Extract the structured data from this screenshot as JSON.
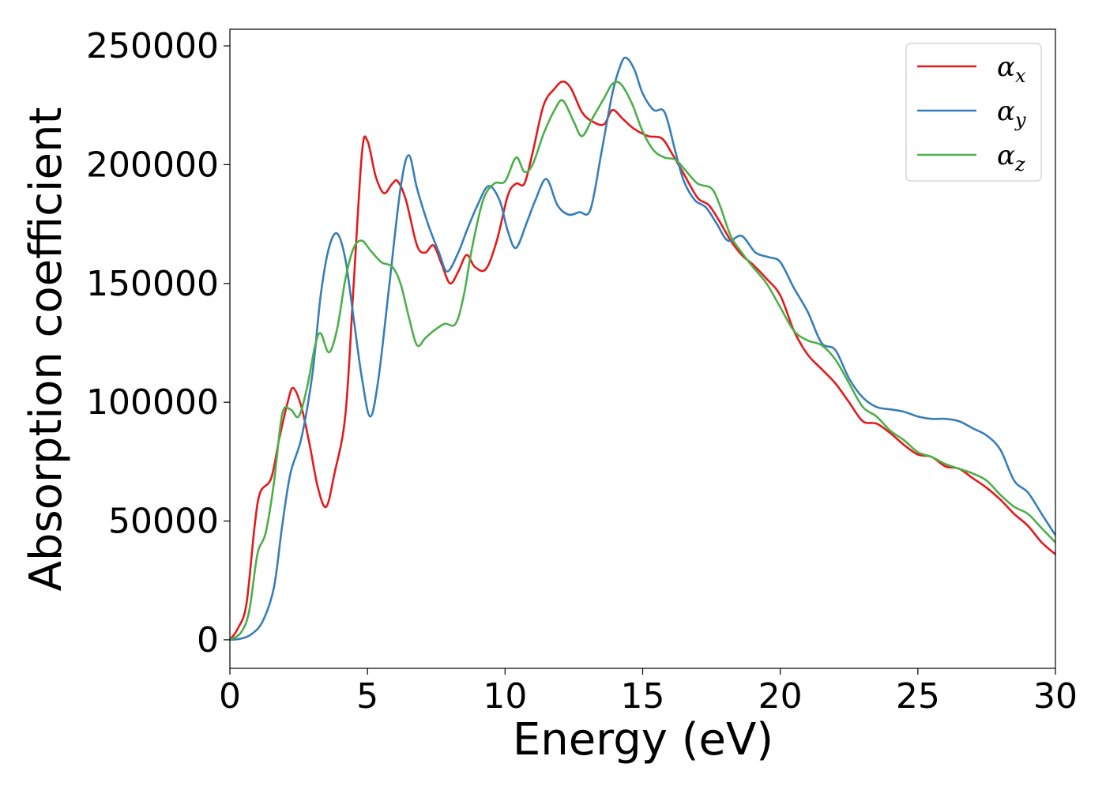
{
  "chart_data": {
    "type": "line",
    "title": "",
    "xlabel": "Energy (eV)",
    "ylabel": "Absorption coefficient",
    "xlim": [
      0,
      30
    ],
    "ylim": [
      -12000,
      257000
    ],
    "xticks": [
      0,
      5,
      10,
      15,
      20,
      25,
      30
    ],
    "yticks": [
      0,
      50000,
      100000,
      150000,
      200000,
      250000
    ],
    "grid": false,
    "legend_position": "top-right",
    "series": [
      {
        "name": "α",
        "subscript": "x",
        "color": "#e41a1c",
        "points": [
          [
            0,
            0
          ],
          [
            0.3,
            5000
          ],
          [
            0.6,
            15000
          ],
          [
            0.9,
            48000
          ],
          [
            1.1,
            62000
          ],
          [
            1.5,
            68000
          ],
          [
            1.8,
            85000
          ],
          [
            2.1,
            100000
          ],
          [
            2.3,
            106000
          ],
          [
            2.6,
            98000
          ],
          [
            2.9,
            82000
          ],
          [
            3.2,
            64000
          ],
          [
            3.5,
            56000
          ],
          [
            3.8,
            70000
          ],
          [
            4.2,
            95000
          ],
          [
            4.5,
            150000
          ],
          [
            4.8,
            205000
          ],
          [
            5.0,
            210000
          ],
          [
            5.3,
            195000
          ],
          [
            5.6,
            188000
          ],
          [
            5.9,
            192000
          ],
          [
            6.1,
            193000
          ],
          [
            6.4,
            185000
          ],
          [
            6.8,
            166000
          ],
          [
            7.1,
            163000
          ],
          [
            7.4,
            166000
          ],
          [
            7.7,
            158000
          ],
          [
            8.0,
            150000
          ],
          [
            8.3,
            155000
          ],
          [
            8.6,
            162000
          ],
          [
            8.9,
            157000
          ],
          [
            9.3,
            156000
          ],
          [
            9.7,
            168000
          ],
          [
            10.1,
            187000
          ],
          [
            10.4,
            192000
          ],
          [
            10.7,
            192000
          ],
          [
            11.0,
            205000
          ],
          [
            11.4,
            225000
          ],
          [
            11.8,
            232000
          ],
          [
            12.1,
            235000
          ],
          [
            12.4,
            232000
          ],
          [
            12.8,
            222000
          ],
          [
            13.2,
            218000
          ],
          [
            13.6,
            217000
          ],
          [
            13.9,
            223000
          ],
          [
            14.3,
            219000
          ],
          [
            14.7,
            215000
          ],
          [
            15.2,
            212000
          ],
          [
            15.7,
            211000
          ],
          [
            16.1,
            204000
          ],
          [
            16.5,
            196000
          ],
          [
            17.0,
            186000
          ],
          [
            17.4,
            183000
          ],
          [
            17.8,
            176000
          ],
          [
            18.2,
            168000
          ],
          [
            18.6,
            162000
          ],
          [
            19.0,
            158000
          ],
          [
            19.5,
            152000
          ],
          [
            20.0,
            145000
          ],
          [
            20.5,
            130000
          ],
          [
            21.0,
            120000
          ],
          [
            21.5,
            114000
          ],
          [
            22.0,
            108000
          ],
          [
            22.5,
            100000
          ],
          [
            23.0,
            92000
          ],
          [
            23.5,
            91000
          ],
          [
            24.0,
            87000
          ],
          [
            24.5,
            82000
          ],
          [
            25.0,
            78000
          ],
          [
            25.5,
            77000
          ],
          [
            26.0,
            73000
          ],
          [
            26.5,
            72000
          ],
          [
            27.0,
            68000
          ],
          [
            27.5,
            64000
          ],
          [
            28.0,
            59000
          ],
          [
            28.5,
            53000
          ],
          [
            29.0,
            48000
          ],
          [
            29.5,
            41000
          ],
          [
            30.0,
            36000
          ]
        ]
      },
      {
        "name": "α",
        "subscript": "y",
        "color": "#377eb8",
        "points": [
          [
            0,
            0
          ],
          [
            0.4,
            500
          ],
          [
            0.8,
            2500
          ],
          [
            1.2,
            8000
          ],
          [
            1.6,
            22000
          ],
          [
            1.9,
            48000
          ],
          [
            2.2,
            70000
          ],
          [
            2.6,
            85000
          ],
          [
            3.0,
            112000
          ],
          [
            3.3,
            145000
          ],
          [
            3.6,
            165000
          ],
          [
            3.9,
            171000
          ],
          [
            4.2,
            160000
          ],
          [
            4.5,
            135000
          ],
          [
            4.8,
            110000
          ],
          [
            5.1,
            94000
          ],
          [
            5.4,
            110000
          ],
          [
            5.8,
            150000
          ],
          [
            6.2,
            190000
          ],
          [
            6.5,
            204000
          ],
          [
            6.8,
            190000
          ],
          [
            7.2,
            175000
          ],
          [
            7.6,
            163000
          ],
          [
            7.9,
            155000
          ],
          [
            8.3,
            163000
          ],
          [
            8.6,
            172000
          ],
          [
            9.0,
            183000
          ],
          [
            9.4,
            191000
          ],
          [
            9.8,
            185000
          ],
          [
            10.1,
            172000
          ],
          [
            10.4,
            165000
          ],
          [
            10.8,
            176000
          ],
          [
            11.1,
            185000
          ],
          [
            11.5,
            194000
          ],
          [
            11.9,
            183000
          ],
          [
            12.3,
            179000
          ],
          [
            12.7,
            180000
          ],
          [
            13.1,
            181000
          ],
          [
            13.5,
            205000
          ],
          [
            13.9,
            230000
          ],
          [
            14.2,
            242000
          ],
          [
            14.4,
            245000
          ],
          [
            14.7,
            240000
          ],
          [
            15.0,
            230000
          ],
          [
            15.4,
            223000
          ],
          [
            15.8,
            222000
          ],
          [
            16.2,
            205000
          ],
          [
            16.5,
            193000
          ],
          [
            16.9,
            185000
          ],
          [
            17.3,
            182000
          ],
          [
            17.7,
            175000
          ],
          [
            18.1,
            168000
          ],
          [
            18.6,
            170000
          ],
          [
            19.1,
            163000
          ],
          [
            19.6,
            161000
          ],
          [
            20.0,
            159000
          ],
          [
            20.5,
            148000
          ],
          [
            21.0,
            138000
          ],
          [
            21.5,
            125000
          ],
          [
            22.0,
            122000
          ],
          [
            22.5,
            110000
          ],
          [
            23.0,
            102000
          ],
          [
            23.5,
            98000
          ],
          [
            24.0,
            97000
          ],
          [
            24.5,
            96000
          ],
          [
            25.0,
            94000
          ],
          [
            25.5,
            93000
          ],
          [
            26.0,
            93000
          ],
          [
            26.5,
            92000
          ],
          [
            27.0,
            89000
          ],
          [
            27.5,
            86000
          ],
          [
            28.0,
            80000
          ],
          [
            28.5,
            67000
          ],
          [
            29.0,
            62000
          ],
          [
            29.5,
            53000
          ],
          [
            30.0,
            44000
          ]
        ]
      },
      {
        "name": "α",
        "subscript": "z",
        "color": "#4daf4a",
        "points": [
          [
            0,
            0
          ],
          [
            0.4,
            3000
          ],
          [
            0.7,
            12000
          ],
          [
            1.0,
            36000
          ],
          [
            1.3,
            45000
          ],
          [
            1.6,
            66000
          ],
          [
            1.9,
            95000
          ],
          [
            2.2,
            97000
          ],
          [
            2.5,
            94000
          ],
          [
            2.8,
            106000
          ],
          [
            3.1,
            124000
          ],
          [
            3.3,
            129000
          ],
          [
            3.6,
            121000
          ],
          [
            3.9,
            131000
          ],
          [
            4.2,
            152000
          ],
          [
            4.5,
            165000
          ],
          [
            4.8,
            168000
          ],
          [
            5.1,
            164000
          ],
          [
            5.5,
            159000
          ],
          [
            5.9,
            157000
          ],
          [
            6.2,
            150000
          ],
          [
            6.5,
            136000
          ],
          [
            6.8,
            124000
          ],
          [
            7.1,
            127000
          ],
          [
            7.4,
            130000
          ],
          [
            7.8,
            133000
          ],
          [
            8.2,
            133000
          ],
          [
            8.5,
            145000
          ],
          [
            8.8,
            165000
          ],
          [
            9.2,
            185000
          ],
          [
            9.6,
            192000
          ],
          [
            10.0,
            193000
          ],
          [
            10.4,
            203000
          ],
          [
            10.7,
            197000
          ],
          [
            11.0,
            200000
          ],
          [
            11.4,
            213000
          ],
          [
            11.8,
            223000
          ],
          [
            12.1,
            227000
          ],
          [
            12.5,
            218000
          ],
          [
            12.8,
            212000
          ],
          [
            13.2,
            220000
          ],
          [
            13.6,
            228000
          ],
          [
            13.9,
            234000
          ],
          [
            14.2,
            234000
          ],
          [
            14.6,
            226000
          ],
          [
            15.0,
            214000
          ],
          [
            15.4,
            206000
          ],
          [
            15.8,
            203000
          ],
          [
            16.2,
            202000
          ],
          [
            16.6,
            197000
          ],
          [
            17.0,
            192000
          ],
          [
            17.5,
            190000
          ],
          [
            17.8,
            183000
          ],
          [
            18.2,
            170000
          ],
          [
            18.6,
            163000
          ],
          [
            19.0,
            157000
          ],
          [
            19.5,
            150000
          ],
          [
            20.0,
            140000
          ],
          [
            20.5,
            130000
          ],
          [
            21.0,
            126000
          ],
          [
            21.5,
            124000
          ],
          [
            22.0,
            118000
          ],
          [
            22.5,
            108000
          ],
          [
            23.0,
            98000
          ],
          [
            23.5,
            94000
          ],
          [
            24.0,
            88000
          ],
          [
            24.5,
            84000
          ],
          [
            25.0,
            79000
          ],
          [
            25.5,
            77000
          ],
          [
            26.0,
            74000
          ],
          [
            26.5,
            72000
          ],
          [
            27.0,
            70000
          ],
          [
            27.5,
            67000
          ],
          [
            28.0,
            61000
          ],
          [
            28.5,
            56000
          ],
          [
            29.0,
            53000
          ],
          [
            29.5,
            47000
          ],
          [
            30.0,
            41000
          ]
        ]
      }
    ]
  }
}
